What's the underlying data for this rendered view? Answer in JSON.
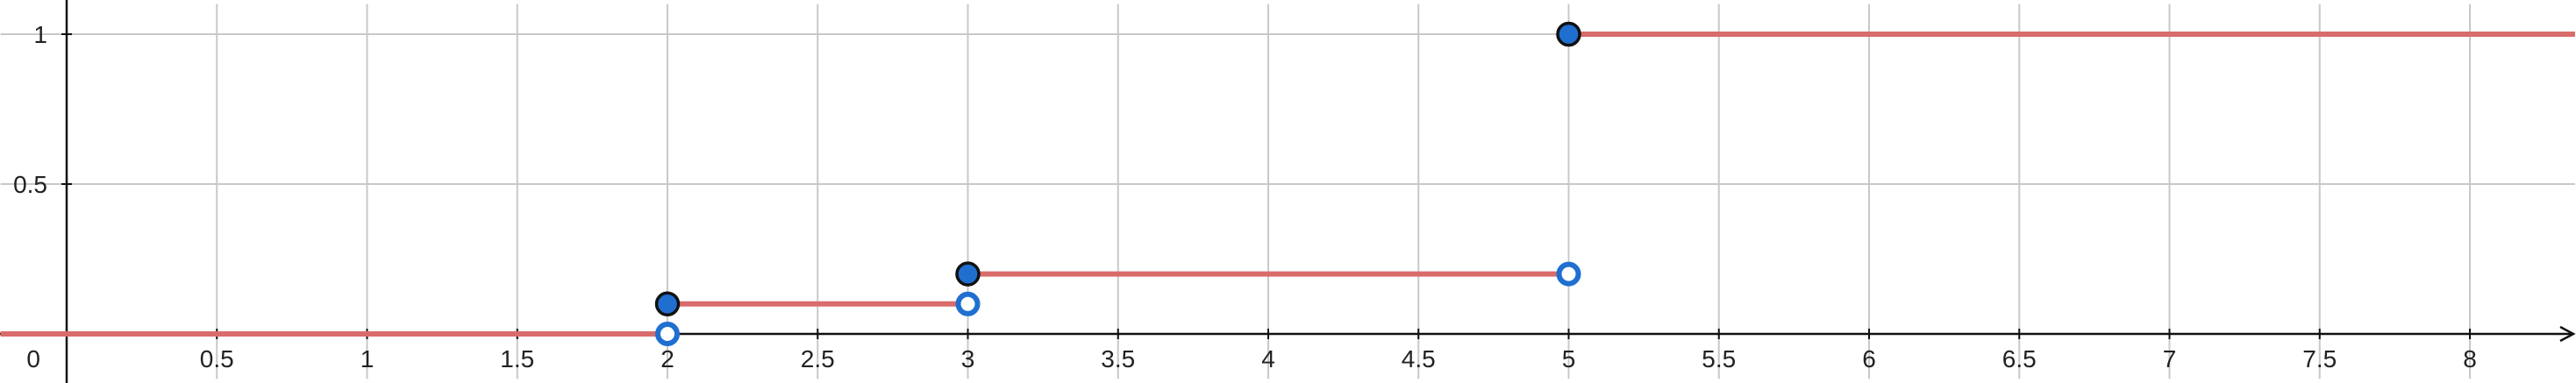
{
  "chart_data": {
    "type": "line",
    "subtype": "step-function",
    "title": "",
    "xlabel": "",
    "ylabel": "",
    "xlim": [
      -0.22,
      8.35
    ],
    "ylim": [
      -0.15,
      1.1
    ],
    "grid": true,
    "x_ticks": [
      0.5,
      1,
      1.5,
      2,
      2.5,
      3,
      3.5,
      4,
      4.5,
      5,
      5.5,
      6,
      6.5,
      7,
      7.5,
      8
    ],
    "x_tick_labels": [
      "0.5",
      "1",
      "1.5",
      "2",
      "2.5",
      "3",
      "3.5",
      "4",
      "4.5",
      "5",
      "5.5",
      "6",
      "6.5",
      "7",
      "7.5",
      "8"
    ],
    "y_ticks": [
      0.5,
      1
    ],
    "y_tick_labels": [
      "0.5",
      "1"
    ],
    "origin_label": "0",
    "segments": [
      {
        "x_start": -0.22,
        "x_end": 2,
        "y": 0
      },
      {
        "x_start": 2,
        "x_end": 3,
        "y": 0.1
      },
      {
        "x_start": 3,
        "x_end": 5,
        "y": 0.2
      },
      {
        "x_start": 5,
        "x_end": 8.35,
        "y": 1
      }
    ],
    "closed_points": [
      {
        "x": 2,
        "y": 0.1
      },
      {
        "x": 3,
        "y": 0.2
      },
      {
        "x": 5,
        "y": 1
      }
    ],
    "open_points": [
      {
        "x": 2,
        "y": 0
      },
      {
        "x": 3,
        "y": 0.1
      },
      {
        "x": 5,
        "y": 0.2
      }
    ]
  },
  "colors": {
    "line": "#d96b6b",
    "closed_fill": "#1f6fd1",
    "open_stroke": "#1f6fd1",
    "grid": "#c8c8c8",
    "axis": "#111111"
  }
}
